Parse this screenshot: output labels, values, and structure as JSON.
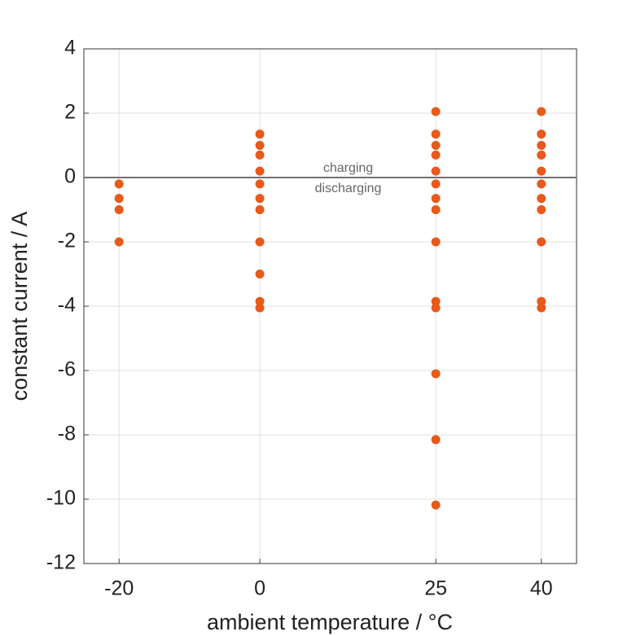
{
  "chart_data": {
    "type": "scatter",
    "xlabel": "ambient temperature / °C",
    "ylabel": "constant current / A",
    "annotations": [
      "charging",
      "discharging"
    ],
    "x": [
      -20,
      -20,
      -20,
      -20,
      0,
      0,
      0,
      0,
      0,
      0,
      0,
      0,
      0,
      0,
      0,
      25,
      25,
      25,
      25,
      25,
      25,
      25,
      25,
      25,
      25,
      25,
      25,
      25,
      25,
      40,
      40,
      40,
      40,
      40,
      40,
      40,
      40,
      40,
      40,
      40
    ],
    "values": [
      -0.2,
      -0.65,
      -1,
      -2,
      1.35,
      1.0,
      0.7,
      0.2,
      -0.2,
      -0.65,
      -1,
      -2,
      -3,
      -3.85,
      -4.05,
      2.05,
      1.35,
      1.0,
      0.7,
      0.2,
      -0.2,
      -0.65,
      -1,
      -2,
      -3.85,
      -4.05,
      -6.1,
      -8.15,
      -10.18,
      2.05,
      1.35,
      1.0,
      0.7,
      0.2,
      -0.2,
      -0.65,
      -1,
      -2,
      -3.85,
      -4.05
    ],
    "color": "#e8591a",
    "reference_line": 0,
    "reference_color": "#707070",
    "xlim": [
      -25,
      45
    ],
    "xticks": [
      -20,
      0,
      25,
      40
    ],
    "ylim": [
      -12,
      4
    ],
    "yticks": [
      -12,
      -10,
      -8,
      -6,
      -4,
      -2,
      0,
      2,
      4
    ],
    "grid": true
  }
}
